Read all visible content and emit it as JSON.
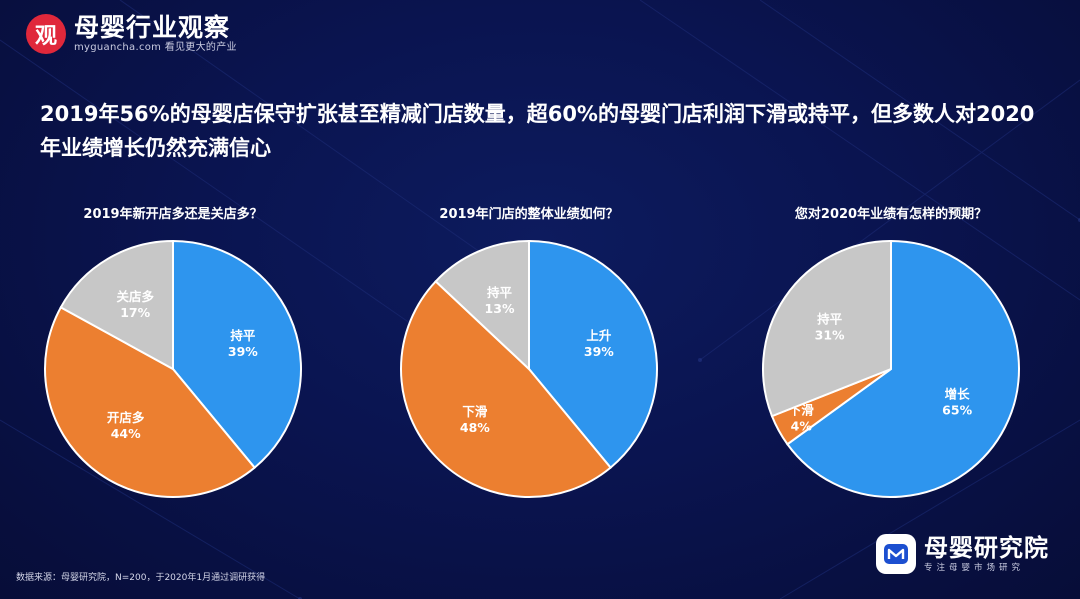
{
  "header": {
    "logo_mark": "观",
    "logo_name": "母婴行业观察",
    "logo_sub": "myguancha.com 看见更大的产业"
  },
  "headline": "2019年56%的母婴店保守扩张甚至精减门店数量，超60%的母婴门店利润下滑或持平，但多数人对2020年业绩增长仍然充满信心",
  "colors": {
    "blue": "#2e95ee",
    "orange": "#ec7f30",
    "gray": "#c7c7c7"
  },
  "chart_data": [
    {
      "type": "pie",
      "title": "2019年新开店多还是关店多？",
      "slices": [
        {
          "label": "持平",
          "value": 39,
          "pct": "39%",
          "color": "#2e95ee"
        },
        {
          "label": "开店多",
          "value": 44,
          "pct": "44%",
          "color": "#ec7f30"
        },
        {
          "label": "关店多",
          "value": 17,
          "pct": "17%",
          "color": "#c7c7c7"
        }
      ]
    },
    {
      "type": "pie",
      "title": "2019年门店的整体业绩如何？",
      "slices": [
        {
          "label": "上升",
          "value": 39,
          "pct": "39%",
          "color": "#2e95ee"
        },
        {
          "label": "下滑",
          "value": 48,
          "pct": "48%",
          "color": "#ec7f30"
        },
        {
          "label": "持平",
          "value": 13,
          "pct": "13%",
          "color": "#c7c7c7"
        }
      ]
    },
    {
      "type": "pie",
      "title": "您对2020年业绩有怎样的预期？",
      "slices": [
        {
          "label": "增长",
          "value": 65,
          "pct": "65%",
          "color": "#2e95ee"
        },
        {
          "label": "下滑",
          "value": 4,
          "pct": "4%",
          "color": "#ec7f30"
        },
        {
          "label": "持平",
          "value": 31,
          "pct": "31%",
          "color": "#c7c7c7"
        }
      ]
    }
  ],
  "footer": {
    "source": "数据来源：母婴研究院，N=200，于2020年1月通过调研获得",
    "brand_name": "母婴研究院",
    "brand_sub": "专注母婴市场研究"
  }
}
